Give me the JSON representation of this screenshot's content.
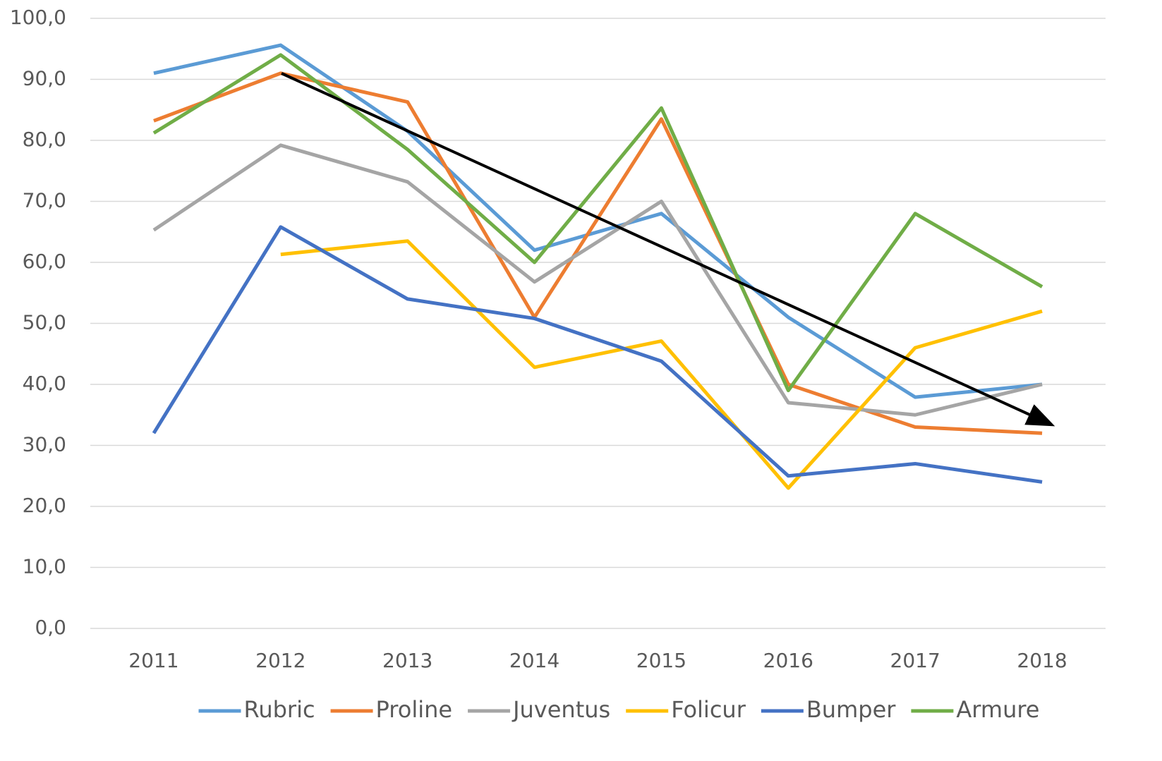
{
  "chart_data": {
    "type": "line",
    "categories": [
      "2011",
      "2012",
      "2013",
      "2014",
      "2015",
      "2016",
      "2017",
      "2018"
    ],
    "series": [
      {
        "name": "Rubric",
        "color": "#5b9bd5",
        "values": [
          91.0,
          95.6,
          81.5,
          62.0,
          68.0,
          51.0,
          37.9,
          40.0
        ]
      },
      {
        "name": "Proline",
        "color": "#ed7d31",
        "values": [
          83.2,
          91.0,
          86.3,
          51.0,
          83.5,
          40.0,
          33.0,
          32.0
        ]
      },
      {
        "name": "Juventus",
        "color": "#a5a5a5",
        "values": [
          65.3,
          79.2,
          73.2,
          56.8,
          70.0,
          37.0,
          35.0,
          40.0
        ]
      },
      {
        "name": "Folicur",
        "color": "#ffc000",
        "values": [
          null,
          61.3,
          63.5,
          42.8,
          47.1,
          23.0,
          46.0,
          52.0
        ]
      },
      {
        "name": "Bumper",
        "color": "#4472c4",
        "values": [
          32.0,
          65.8,
          54.0,
          50.8,
          43.8,
          25.0,
          27.0,
          24.0
        ]
      },
      {
        "name": "Armure",
        "color": "#70ad47",
        "values": [
          81.2,
          94.0,
          78.5,
          60.0,
          85.3,
          39.0,
          68.0,
          56.0
        ]
      }
    ],
    "ylim": [
      0,
      100
    ],
    "yticks": [
      {
        "value": 0,
        "label": "0,0"
      },
      {
        "value": 10,
        "label": "10,0"
      },
      {
        "value": 20,
        "label": "20,0"
      },
      {
        "value": 30,
        "label": "30,0"
      },
      {
        "value": 40,
        "label": "40,0"
      },
      {
        "value": 50,
        "label": "50,0"
      },
      {
        "value": 60,
        "label": "60,0"
      },
      {
        "value": 70,
        "label": "70,0"
      },
      {
        "value": 80,
        "label": "80,0"
      },
      {
        "value": 90,
        "label": "90,0"
      },
      {
        "value": 100,
        "label": "100,0"
      }
    ],
    "grid": true,
    "legend": "bottom"
  }
}
